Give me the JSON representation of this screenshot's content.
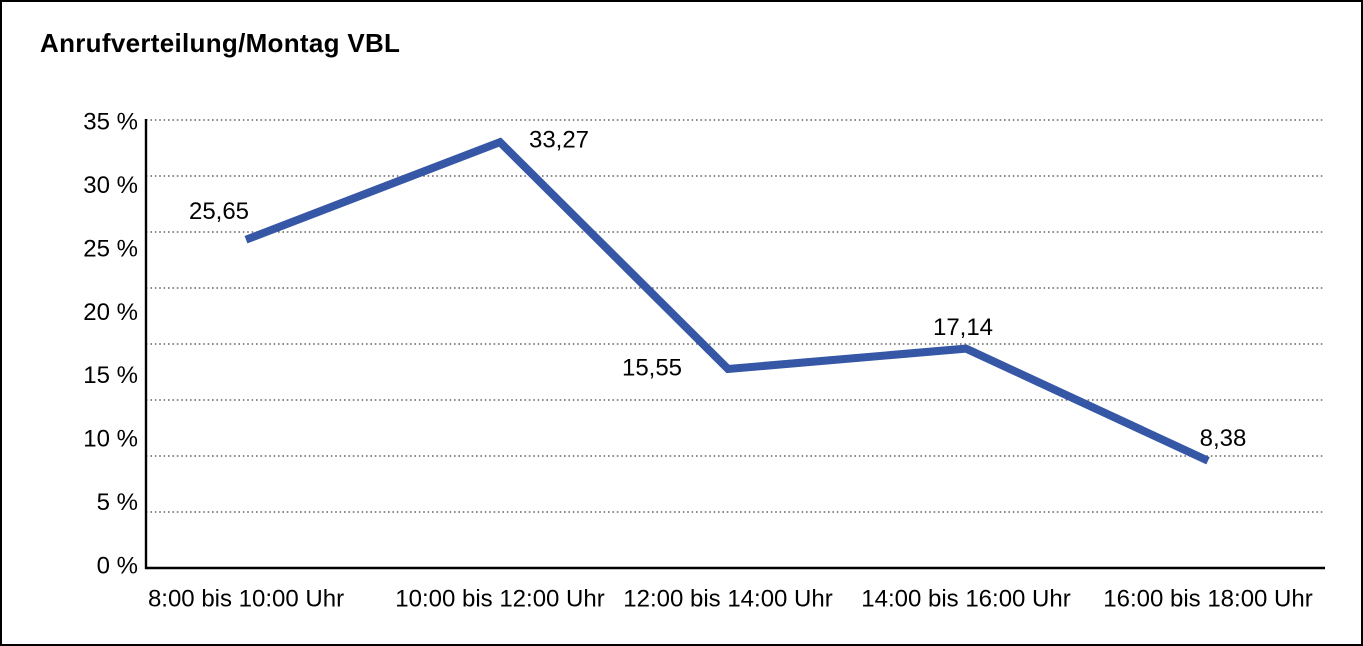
{
  "window": {
    "background_color": "#ffffff",
    "border_color": "#000000"
  },
  "chart_data": {
    "type": "line",
    "title": "Anrufverteilung/Montag VBL",
    "categories": [
      "8:00 bis 10:00 Uhr",
      "10:00 bis 12:00 Uhr",
      "12:00 bis 14:00 Uhr",
      "14:00 bis 16:00 Uhr",
      "16:00 bis 18:00 Uhr"
    ],
    "values": [
      25.65,
      33.27,
      15.55,
      17.14,
      8.38
    ],
    "value_labels": [
      "25,65",
      "33,27",
      "15,55",
      "17,14",
      "8,38"
    ],
    "xlabel": "",
    "ylabel": "",
    "ylim": [
      0,
      35
    ],
    "y_tick_labels": [
      "35 %",
      "30 %",
      "25 %",
      "20 %",
      "15 %",
      "10 %",
      "5 %",
      "0 %"
    ],
    "grid": true,
    "gridline_count": 9,
    "gridline_style": "dotted",
    "legend": false,
    "markers": false,
    "line_color": "#3656a6",
    "gridline_color": "#4a4a4a",
    "axis_color": "#000000",
    "text_color": "#000000"
  }
}
